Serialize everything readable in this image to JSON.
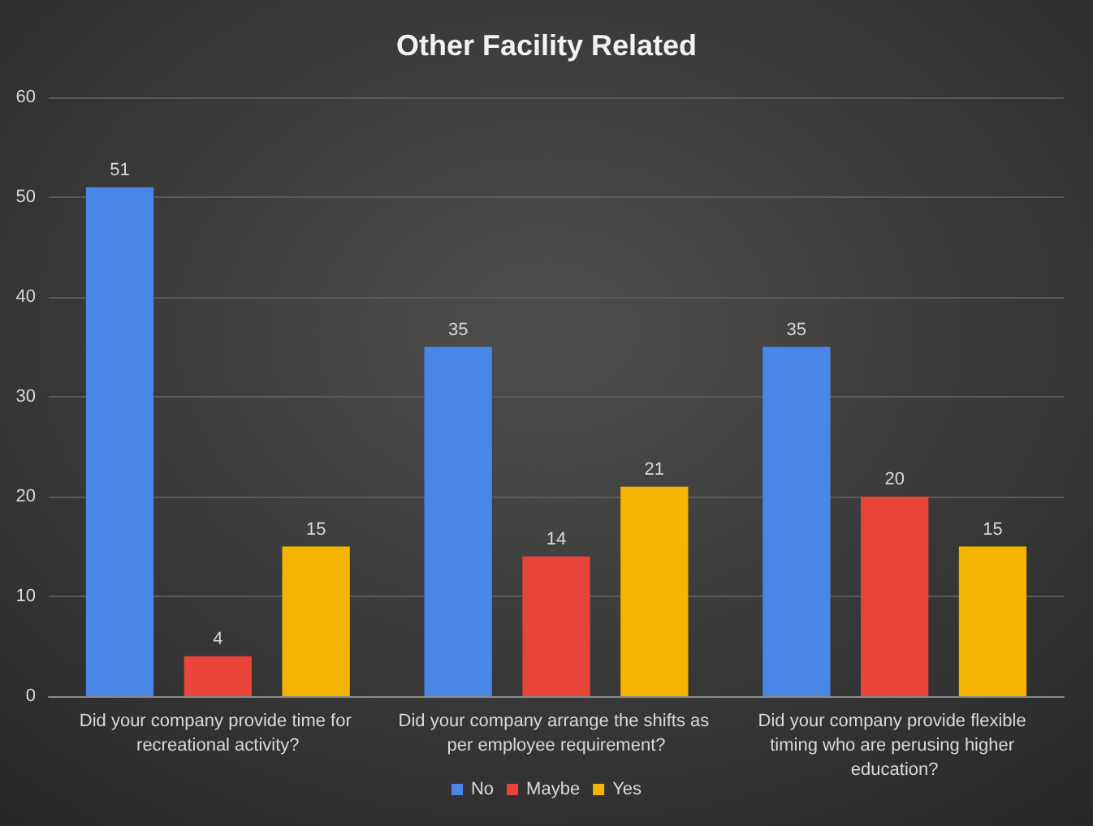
{
  "chart_data": {
    "type": "bar",
    "title": "Other Facility Related",
    "categories": [
      "Did your company provide time for recreational activity?",
      "Did your company arrange the shifts as per employee requirement?",
      "Did your company provide flexible timing who are perusing higher education?"
    ],
    "series": [
      {
        "name": "No",
        "color": "#4a86e8",
        "values": [
          51,
          35,
          35
        ]
      },
      {
        "name": "Maybe",
        "color": "#e8443a",
        "values": [
          4,
          14,
          20
        ]
      },
      {
        "name": "Yes",
        "color": "#f4b400",
        "values": [
          15,
          21,
          15
        ]
      }
    ],
    "ylim": [
      0,
      60
    ],
    "yticks": [
      0,
      10,
      20,
      30,
      40,
      50,
      60
    ],
    "grid": "y",
    "legend": "bottom",
    "data_labels": true
  }
}
